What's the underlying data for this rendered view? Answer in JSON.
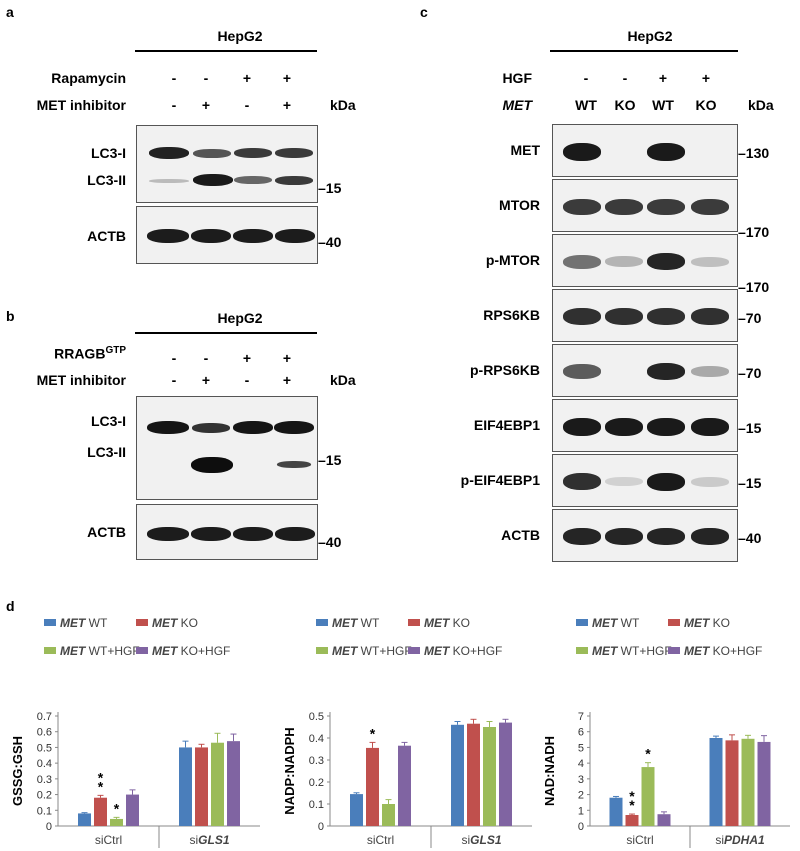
{
  "panels": {
    "a": "a",
    "b": "b",
    "c": "c",
    "d": "d"
  },
  "panel_a": {
    "cell": "HepG2",
    "rows": [
      {
        "label": "Rapamycin",
        "values": [
          "-",
          "-",
          "+",
          "+"
        ]
      },
      {
        "label": "MET inhibitor",
        "values": [
          "-",
          "+",
          "-",
          "+"
        ]
      }
    ],
    "kda_label": "kDa",
    "blots": [
      {
        "labels": [
          "LC3-I",
          "LC3-II"
        ],
        "markers": [
          "15"
        ]
      },
      {
        "labels": [
          "ACTB"
        ],
        "markers": [
          "40"
        ]
      }
    ]
  },
  "panel_b": {
    "cell": "HepG2",
    "rows": [
      {
        "label": "RRAGB",
        "sup": "GTP",
        "values": [
          "-",
          "-",
          "+",
          "+"
        ]
      },
      {
        "label": "MET inhibitor",
        "values": [
          "-",
          "+",
          "-",
          "+"
        ]
      }
    ],
    "kda_label": "kDa",
    "blots": [
      {
        "labels": [
          "LC3-I",
          "LC3-II"
        ],
        "markers": [
          "15"
        ]
      },
      {
        "labels": [
          "ACTB"
        ],
        "markers": [
          "40"
        ]
      }
    ]
  },
  "panel_c": {
    "cell": "HepG2",
    "rows": [
      {
        "label": "HGF",
        "values": [
          "-",
          "-",
          "+",
          "+"
        ]
      },
      {
        "label": "MET",
        "italic": true,
        "values": [
          "WT",
          "KO",
          "WT",
          "KO"
        ]
      }
    ],
    "kda_label": "kDa",
    "blots": [
      {
        "label": "MET",
        "marker": "130",
        "intensity": [
          0.95,
          0.0,
          0.95,
          0.0
        ]
      },
      {
        "label": "MTOR",
        "marker": "170",
        "intensity": [
          0.8,
          0.8,
          0.8,
          0.8
        ]
      },
      {
        "label": "p-MTOR",
        "marker": "170",
        "intensity": [
          0.55,
          0.25,
          0.9,
          0.2
        ]
      },
      {
        "label": "RPS6KB",
        "marker": "70",
        "intensity": [
          0.85,
          0.85,
          0.85,
          0.85
        ]
      },
      {
        "label": "p-RPS6KB",
        "marker": "70",
        "intensity": [
          0.65,
          0.0,
          0.9,
          0.3
        ]
      },
      {
        "label": "EIF4EBP1",
        "marker": "15",
        "intensity": [
          0.95,
          0.95,
          0.95,
          0.95
        ]
      },
      {
        "label": "p-EIF4EBP1",
        "marker": "15",
        "intensity": [
          0.85,
          0.12,
          0.95,
          0.15
        ]
      },
      {
        "label": "ACTB",
        "marker": "40",
        "intensity": [
          0.9,
          0.9,
          0.9,
          0.9
        ]
      }
    ]
  },
  "colors": {
    "met_wt": "#4a7ebb",
    "met_ko": "#c0504d",
    "met_wt_hgf": "#9bbb59",
    "met_ko_hgf": "#8064a2"
  },
  "chart_data": [
    {
      "type": "bar",
      "ylabel": "GSSG:GSH",
      "ylim": [
        0,
        0.7
      ],
      "yticks": [
        "0",
        "0.1",
        "0.2",
        "0.3",
        "0.4",
        "0.5",
        "0.6",
        "0.7"
      ],
      "categories": [
        {
          "prefix": "",
          "italic": "",
          "full": "siCtrl"
        },
        {
          "prefix": "si",
          "italic": "GLS1",
          "full": "siGLS1"
        }
      ],
      "series": [
        {
          "name": "MET WT",
          "values": [
            0.08,
            0.5
          ],
          "errors": [
            0.005,
            0.04
          ]
        },
        {
          "name": "MET KO",
          "values": [
            0.18,
            0.5
          ],
          "errors": [
            0.015,
            0.02
          ]
        },
        {
          "name": "MET WT+HGF",
          "values": [
            0.045,
            0.53
          ],
          "errors": [
            0.01,
            0.06
          ]
        },
        {
          "name": "MET KO+HGF",
          "values": [
            0.2,
            0.54
          ],
          "errors": [
            0.03,
            0.045
          ]
        }
      ],
      "annotations": [
        "**",
        "*"
      ]
    },
    {
      "type": "bar",
      "ylabel": "NADP:NADPH",
      "ylim": [
        0,
        0.5
      ],
      "yticks": [
        "0",
        "0.1",
        "0.2",
        "0.3",
        "0.4",
        "0.5"
      ],
      "categories": [
        {
          "prefix": "",
          "italic": "",
          "full": "siCtrl"
        },
        {
          "prefix": "si",
          "italic": "GLS1",
          "full": "siGLS1"
        }
      ],
      "series": [
        {
          "name": "MET WT",
          "values": [
            0.145,
            0.46
          ],
          "errors": [
            0.006,
            0.015
          ]
        },
        {
          "name": "MET KO",
          "values": [
            0.355,
            0.465
          ],
          "errors": [
            0.025,
            0.02
          ]
        },
        {
          "name": "MET WT+HGF",
          "values": [
            0.1,
            0.45
          ],
          "errors": [
            0.02,
            0.025
          ]
        },
        {
          "name": "MET KO+HGF",
          "values": [
            0.365,
            0.47
          ],
          "errors": [
            0.015,
            0.015
          ]
        }
      ],
      "annotations": [
        "*"
      ]
    },
    {
      "type": "bar",
      "ylabel": "NAD:NADH",
      "ylim": [
        0,
        7
      ],
      "yticks": [
        "0",
        "1",
        "2",
        "3",
        "4",
        "5",
        "6",
        "7"
      ],
      "categories": [
        {
          "prefix": "",
          "italic": "",
          "full": "siCtrl"
        },
        {
          "prefix": "si",
          "italic": "PDHA1",
          "full": "siPDHA1"
        }
      ],
      "series": [
        {
          "name": "MET WT",
          "values": [
            1.8,
            5.6
          ],
          "errors": [
            0.08,
            0.12
          ]
        },
        {
          "name": "MET KO",
          "values": [
            0.7,
            5.45
          ],
          "errors": [
            0.06,
            0.35
          ]
        },
        {
          "name": "MET WT+HGF",
          "values": [
            3.75,
            5.55
          ],
          "errors": [
            0.28,
            0.22
          ]
        },
        {
          "name": "MET KO+HGF",
          "values": [
            0.75,
            5.35
          ],
          "errors": [
            0.15,
            0.4
          ]
        }
      ],
      "annotations": [
        "**",
        "*"
      ]
    }
  ]
}
